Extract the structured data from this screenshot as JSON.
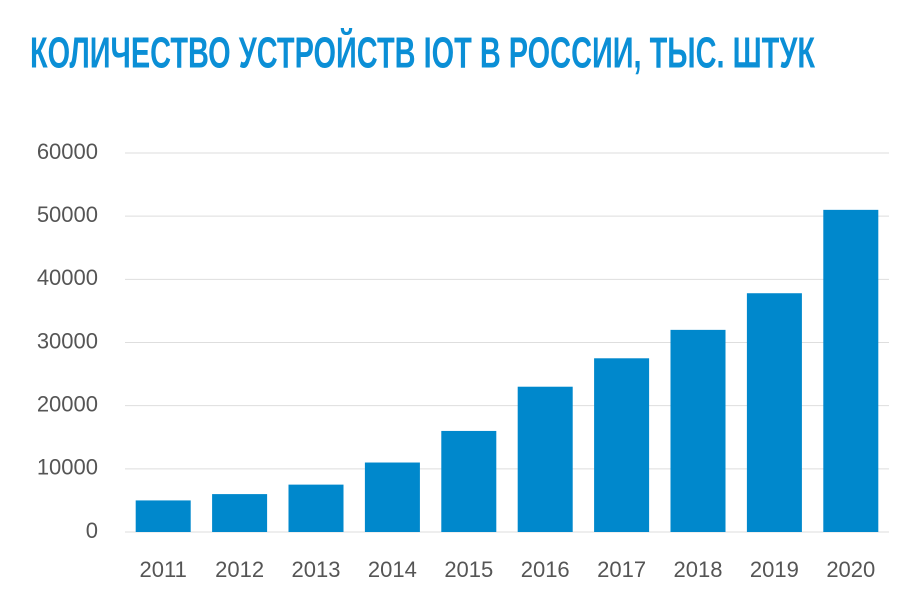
{
  "chart_data": {
    "type": "bar",
    "title": "КОЛИЧЕСТВО УСТРОЙСТВ IOT В РОССИИ, ТЫС. ШТУК",
    "categories": [
      "2011",
      "2012",
      "2013",
      "2014",
      "2015",
      "2016",
      "2017",
      "2018",
      "2019",
      "2020"
    ],
    "values": [
      5000,
      6000,
      7500,
      11000,
      16000,
      23000,
      27500,
      32000,
      37800,
      51000
    ],
    "color": "#0088cc",
    "ylim": [
      0,
      60000
    ],
    "yticks": [
      0,
      10000,
      20000,
      30000,
      40000,
      50000,
      60000
    ],
    "grid": true
  }
}
